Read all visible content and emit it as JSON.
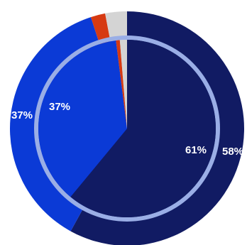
{
  "chart_data": {
    "type": "pie",
    "title": "",
    "rings": [
      {
        "name": "",
        "slices": [
          {
            "value": 58,
            "label": "58%",
            "color": "#111b63"
          },
          {
            "value": 37,
            "label": "37%",
            "color": "#0b3ad6"
          },
          {
            "value": 2,
            "label": "",
            "color": "#d63a12"
          },
          {
            "value": 3,
            "label": "",
            "color": "#d4d4d4"
          }
        ]
      },
      {
        "name": "",
        "slices": [
          {
            "value": 61,
            "label": "61%",
            "color": "#111b63"
          },
          {
            "value": 37,
            "label": "37%",
            "color": "#0b3ad6"
          },
          {
            "value": 0.7,
            "label": "",
            "color": "#d63a12"
          },
          {
            "value": 1.3,
            "label": "",
            "color": "#d4d4d4"
          }
        ]
      }
    ],
    "ring_separator_color": "#9aaee6",
    "start_angle": "top",
    "direction": "clockwise"
  }
}
